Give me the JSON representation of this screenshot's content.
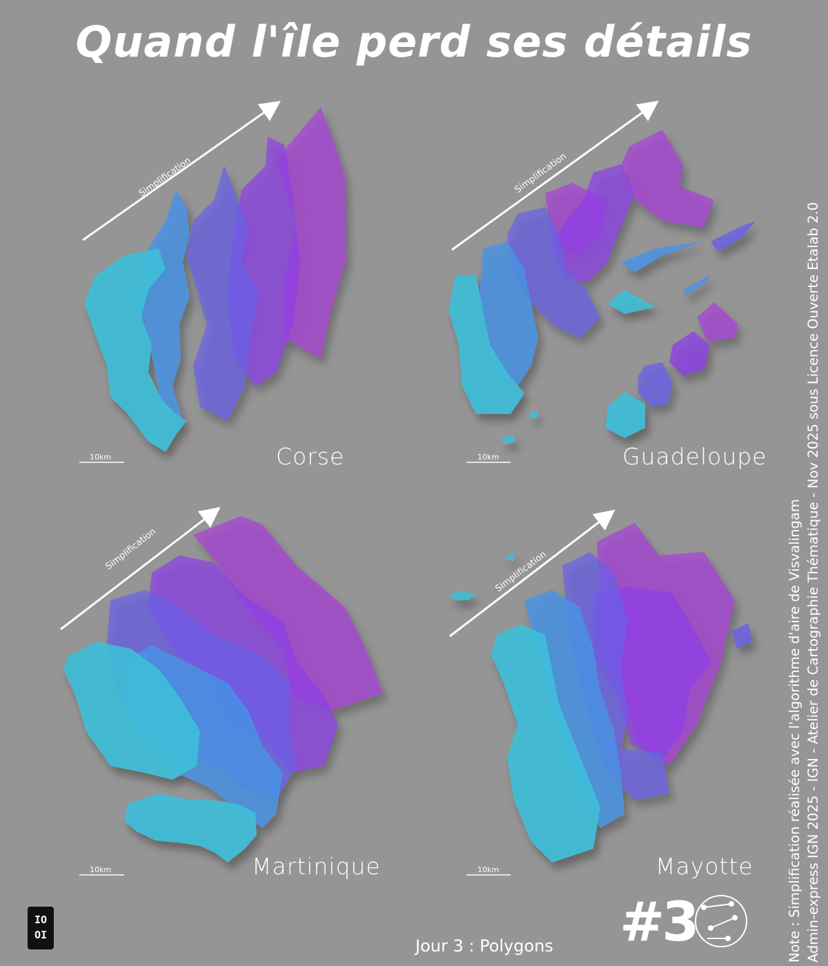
{
  "title": "Quand l'île perd ses détails",
  "arrow_label": "Simplification",
  "scale_label": "10km",
  "islands": [
    "Corse",
    "Guadeloupe",
    "Martinique",
    "Mayotte"
  ],
  "note_lines": [
    "Note : Simplification réalisée avec l'algorithme d'aire de Visvalingam",
    "Admin-express IGN 2025 - IGN - Atelier de Cartographie Thématique - Nov 2025 sous Licence Ouverte Etalab 2.0"
  ],
  "footer": "Jour 3 : Polygons",
  "challenge_number": "#3",
  "logo_text": [
    "IO",
    "OI"
  ],
  "colors": {
    "background": "#959595",
    "level_1": "#3dbfd8",
    "level_2": "#4794e6",
    "level_3": "#6a5fe8",
    "level_4": "#8d3ee8",
    "level_5": "#a83fd8"
  }
}
